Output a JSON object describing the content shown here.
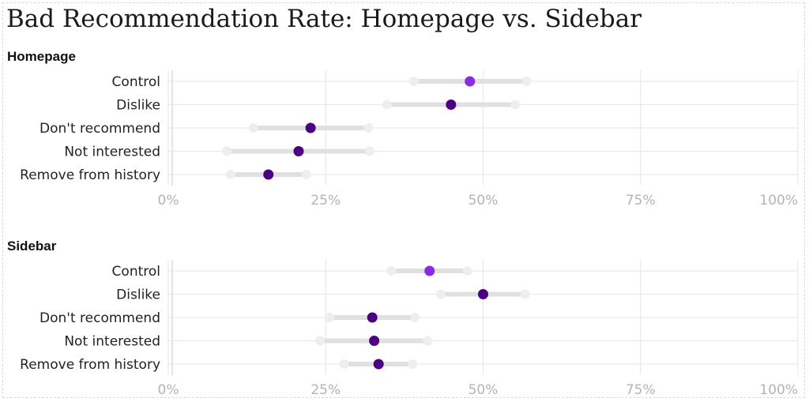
{
  "chart_data": {
    "type": "dot-range",
    "title": "Bad Recommendation Rate: Homepage vs. Sidebar",
    "xlim": [
      0,
      100
    ],
    "x_ticks": [
      0,
      25,
      50,
      75,
      100
    ],
    "x_tick_labels": [
      "0%",
      "25%",
      "50%",
      "75%",
      "100%"
    ],
    "categories": [
      "Control",
      "Dislike",
      "Don't recommend",
      "Not interested",
      "Remove from history"
    ],
    "grid": true,
    "colors": {
      "control": "#8a2be2",
      "treatment": "#4b0082",
      "range": "#e0e0e0",
      "range_end": "#eeeeee",
      "grid": "#e6e6e6"
    },
    "panels": [
      {
        "name": "Homepage",
        "rows": [
          {
            "label": "Control",
            "low": 39.0,
            "value": 47.9,
            "high": 56.9
          },
          {
            "label": "Dislike",
            "low": 34.7,
            "value": 44.9,
            "high": 55.1
          },
          {
            "label": "Don't recommend",
            "low": 13.5,
            "value": 22.6,
            "high": 31.8
          },
          {
            "label": "Not interested",
            "low": 9.3,
            "value": 20.7,
            "high": 32.0
          },
          {
            "label": "Remove from history",
            "low": 9.9,
            "value": 15.9,
            "high": 21.9
          }
        ]
      },
      {
        "name": "Sidebar",
        "rows": [
          {
            "label": "Control",
            "low": 35.4,
            "value": 41.5,
            "high": 47.5
          },
          {
            "label": "Dislike",
            "low": 43.3,
            "value": 50.0,
            "high": 56.7
          },
          {
            "label": "Don't recommend",
            "low": 25.6,
            "value": 32.4,
            "high": 39.2
          },
          {
            "label": "Not interested",
            "low": 24.1,
            "value": 32.7,
            "high": 41.2
          },
          {
            "label": "Remove from history",
            "low": 27.9,
            "value": 33.4,
            "high": 38.8
          }
        ]
      }
    ]
  }
}
